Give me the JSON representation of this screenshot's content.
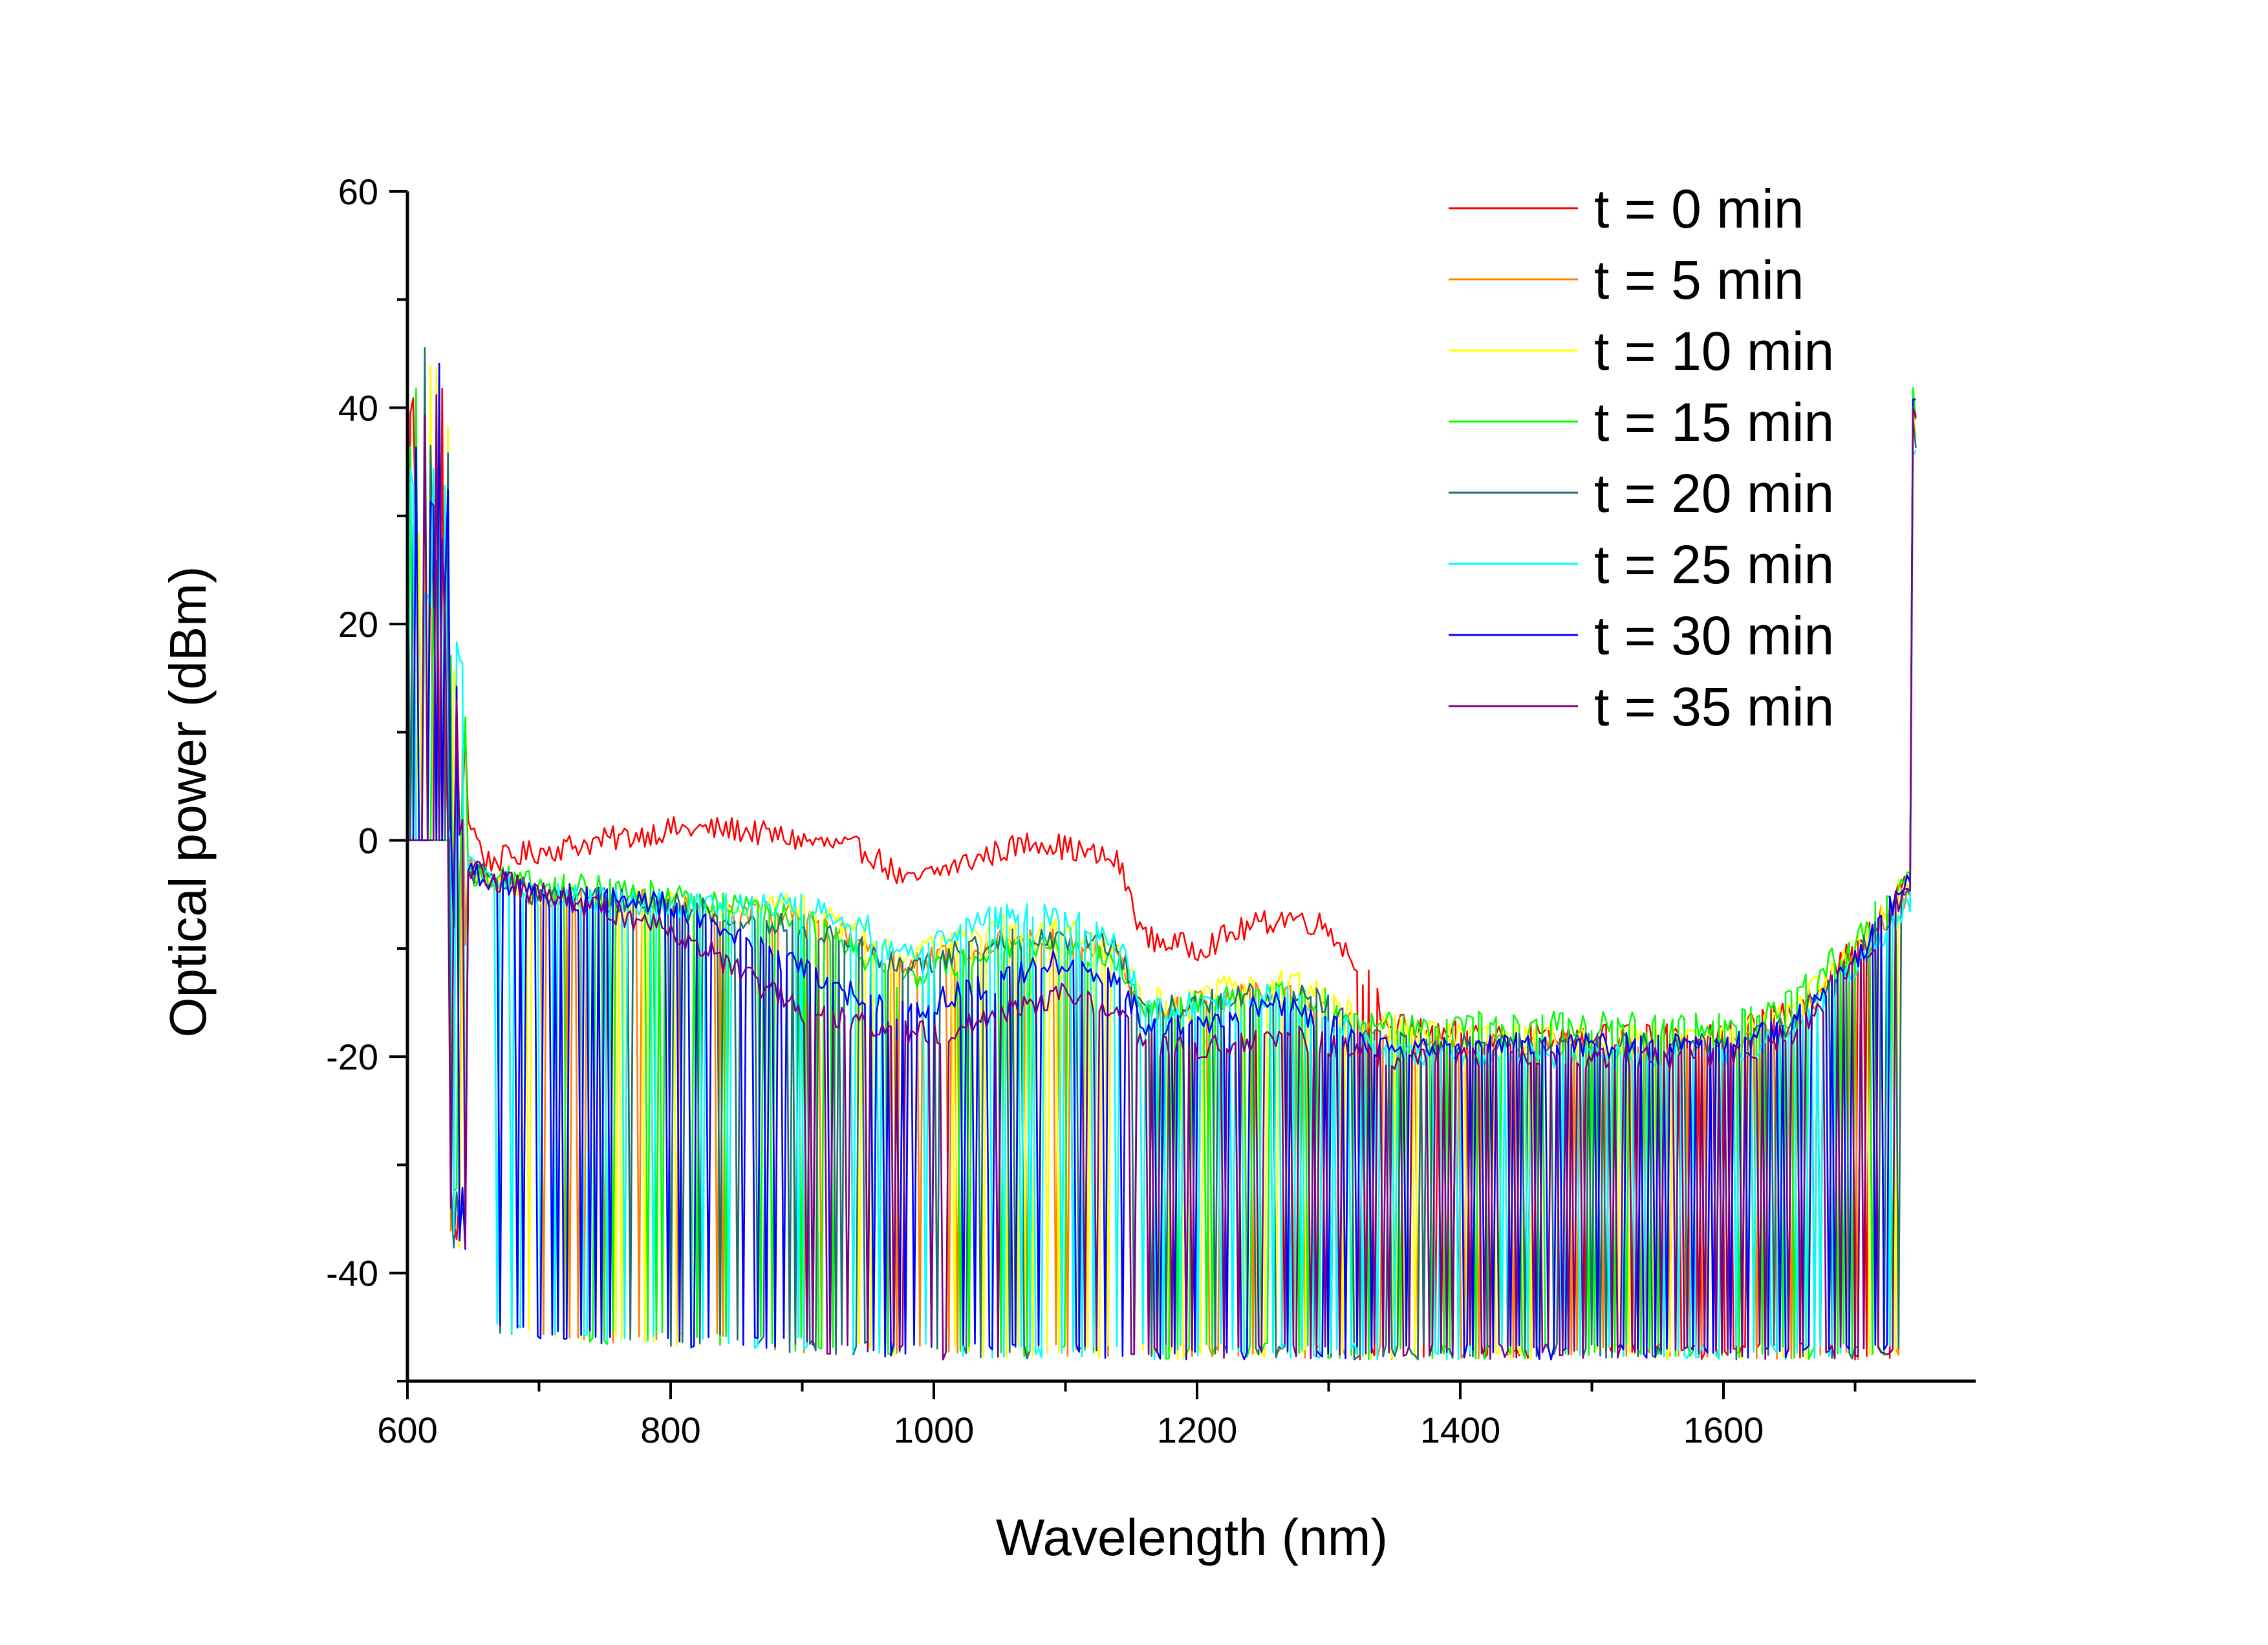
{
  "chart_data": {
    "type": "line",
    "title": "",
    "xlabel": "Wavelength (nm)",
    "ylabel": "Optical power (dBm)",
    "xlim": [
      600,
      1750
    ],
    "ylim": [
      -50,
      60
    ],
    "xticks": [
      600,
      800,
      1000,
      1200,
      1400,
      1600
    ],
    "yticks": [
      60,
      40,
      20,
      0,
      -20,
      -40
    ],
    "grid": false,
    "legend_position": "top-right",
    "noise_floor": -48,
    "series": [
      {
        "name": "t = 0 min",
        "color": "#ff0000",
        "points": [
          [
            600,
            0
          ],
          [
            630,
            0
          ],
          [
            640,
            4
          ],
          [
            660,
            -2
          ],
          [
            700,
            -1
          ],
          [
            750,
            0
          ],
          [
            800,
            1
          ],
          [
            850,
            1
          ],
          [
            900,
            0
          ],
          [
            950,
            -1
          ],
          [
            980,
            -4
          ],
          [
            1000,
            -3
          ],
          [
            1050,
            -1
          ],
          [
            1080,
            0
          ],
          [
            1110,
            -1
          ],
          [
            1140,
            -2
          ],
          [
            1160,
            -9
          ],
          [
            1200,
            -10
          ],
          [
            1240,
            -8
          ],
          [
            1270,
            -7
          ],
          [
            1300,
            -8
          ],
          [
            1330,
            -13
          ],
          [
            1345,
            -17
          ],
          [
            1400,
            -18
          ],
          [
            1500,
            -18
          ],
          [
            1600,
            -18
          ],
          [
            1650,
            -16
          ],
          [
            1700,
            -10
          ],
          [
            1745,
            -3
          ]
        ],
        "dropout_start": 1320
      },
      {
        "name": "t = 5 min",
        "color": "#ff8000",
        "points": [
          [
            600,
            0
          ],
          [
            630,
            0
          ],
          [
            650,
            -3
          ],
          [
            700,
            -5
          ],
          [
            800,
            -6
          ],
          [
            900,
            -7
          ],
          [
            950,
            -10
          ],
          [
            975,
            -12
          ],
          [
            1000,
            -11
          ],
          [
            1050,
            -9
          ],
          [
            1100,
            -9
          ],
          [
            1140,
            -11
          ],
          [
            1160,
            -16
          ],
          [
            1200,
            -15
          ],
          [
            1260,
            -14
          ],
          [
            1300,
            -15
          ],
          [
            1330,
            -18
          ],
          [
            1400,
            -19
          ],
          [
            1500,
            -19
          ],
          [
            1600,
            -19
          ],
          [
            1650,
            -17
          ],
          [
            1700,
            -11
          ],
          [
            1745,
            -4
          ]
        ],
        "dropout_start": 660
      },
      {
        "name": "t = 10 min",
        "color": "#ffff00",
        "points": [
          [
            600,
            0
          ],
          [
            630,
            0
          ],
          [
            650,
            -3
          ],
          [
            700,
            -5
          ],
          [
            800,
            -6
          ],
          [
            900,
            -6
          ],
          [
            950,
            -9
          ],
          [
            975,
            -11
          ],
          [
            1000,
            -10
          ],
          [
            1050,
            -8
          ],
          [
            1100,
            -8
          ],
          [
            1140,
            -10
          ],
          [
            1160,
            -15
          ],
          [
            1200,
            -14
          ],
          [
            1260,
            -13
          ],
          [
            1300,
            -14
          ],
          [
            1330,
            -17
          ],
          [
            1400,
            -18
          ],
          [
            1500,
            -18
          ],
          [
            1600,
            -18
          ],
          [
            1650,
            -16
          ],
          [
            1700,
            -10
          ],
          [
            1745,
            -3
          ]
        ],
        "dropout_start": 660
      },
      {
        "name": "t = 15 min",
        "color": "#00ff00",
        "points": [
          [
            600,
            0
          ],
          [
            630,
            0
          ],
          [
            650,
            -3
          ],
          [
            700,
            -4
          ],
          [
            800,
            -5
          ],
          [
            900,
            -7
          ],
          [
            950,
            -11
          ],
          [
            975,
            -13
          ],
          [
            1000,
            -12
          ],
          [
            1050,
            -10
          ],
          [
            1100,
            -10
          ],
          [
            1140,
            -11
          ],
          [
            1160,
            -16
          ],
          [
            1200,
            -15
          ],
          [
            1260,
            -14
          ],
          [
            1300,
            -15
          ],
          [
            1330,
            -17
          ],
          [
            1400,
            -17
          ],
          [
            1500,
            -17
          ],
          [
            1600,
            -17
          ],
          [
            1650,
            -15
          ],
          [
            1700,
            -9
          ],
          [
            1745,
            -2
          ]
        ],
        "dropout_start": 660
      },
      {
        "name": "t = 20 min",
        "color": "#1e6e73",
        "points": [
          [
            600,
            0
          ],
          [
            630,
            0
          ],
          [
            650,
            -3
          ],
          [
            700,
            -5
          ],
          [
            800,
            -6
          ],
          [
            900,
            -8
          ],
          [
            950,
            -10
          ],
          [
            975,
            -12
          ],
          [
            1000,
            -11
          ],
          [
            1050,
            -9
          ],
          [
            1100,
            -9
          ],
          [
            1140,
            -10
          ],
          [
            1160,
            -16
          ],
          [
            1200,
            -15
          ],
          [
            1260,
            -14
          ],
          [
            1300,
            -15
          ],
          [
            1330,
            -18
          ],
          [
            1400,
            -19
          ],
          [
            1500,
            -19
          ],
          [
            1600,
            -19
          ],
          [
            1650,
            -17
          ],
          [
            1700,
            -11
          ],
          [
            1745,
            -4
          ]
        ],
        "dropout_start": 660
      },
      {
        "name": "t = 25 min",
        "color": "#00ffff",
        "points": [
          [
            600,
            0
          ],
          [
            630,
            0
          ],
          [
            650,
            -3
          ],
          [
            700,
            -5
          ],
          [
            800,
            -6
          ],
          [
            900,
            -6
          ],
          [
            950,
            -8
          ],
          [
            975,
            -11
          ],
          [
            1000,
            -9
          ],
          [
            1050,
            -7
          ],
          [
            1100,
            -7
          ],
          [
            1140,
            -9
          ],
          [
            1160,
            -16
          ],
          [
            1200,
            -15
          ],
          [
            1260,
            -14
          ],
          [
            1300,
            -16
          ],
          [
            1330,
            -19
          ],
          [
            1400,
            -20
          ],
          [
            1500,
            -20
          ],
          [
            1600,
            -20
          ],
          [
            1650,
            -18
          ],
          [
            1700,
            -12
          ],
          [
            1745,
            -5
          ]
        ],
        "dropout_start": 660
      },
      {
        "name": "t = 30 min",
        "color": "#0000ff",
        "points": [
          [
            600,
            0
          ],
          [
            630,
            0
          ],
          [
            650,
            -3
          ],
          [
            700,
            -5
          ],
          [
            800,
            -6
          ],
          [
            900,
            -12
          ],
          [
            950,
            -15
          ],
          [
            975,
            -16
          ],
          [
            1000,
            -15
          ],
          [
            1050,
            -13
          ],
          [
            1100,
            -11
          ],
          [
            1140,
            -13
          ],
          [
            1160,
            -17
          ],
          [
            1200,
            -17
          ],
          [
            1260,
            -15
          ],
          [
            1300,
            -17
          ],
          [
            1330,
            -19
          ],
          [
            1400,
            -19
          ],
          [
            1500,
            -19
          ],
          [
            1600,
            -19
          ],
          [
            1650,
            -17
          ],
          [
            1700,
            -11
          ],
          [
            1745,
            -3
          ]
        ],
        "dropout_start": 660
      },
      {
        "name": "t = 35 min",
        "color": "#800080",
        "points": [
          [
            600,
            0
          ],
          [
            630,
            0
          ],
          [
            650,
            -3
          ],
          [
            700,
            -5
          ],
          [
            800,
            -8
          ],
          [
            900,
            -16
          ],
          [
            950,
            -17
          ],
          [
            1000,
            -18
          ],
          [
            1050,
            -16
          ],
          [
            1100,
            -14
          ],
          [
            1140,
            -16
          ],
          [
            1160,
            -19
          ],
          [
            1200,
            -19
          ],
          [
            1260,
            -18
          ],
          [
            1300,
            -19
          ],
          [
            1330,
            -20
          ],
          [
            1400,
            -20
          ],
          [
            1500,
            -20
          ],
          [
            1600,
            -20
          ],
          [
            1650,
            -18
          ],
          [
            1700,
            -12
          ],
          [
            1745,
            -3
          ]
        ],
        "dropout_start": 900
      }
    ]
  }
}
